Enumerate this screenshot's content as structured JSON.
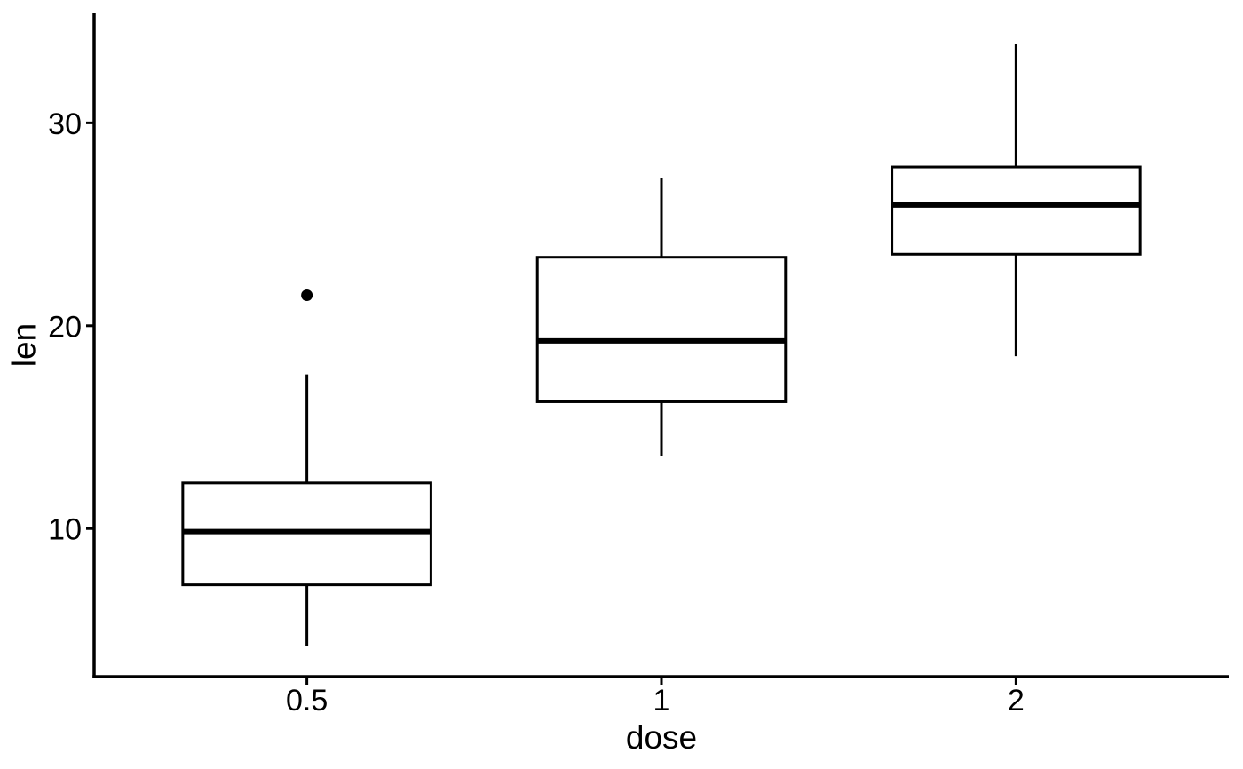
{
  "chart_data": {
    "type": "boxplot",
    "title": "",
    "xlabel": "dose",
    "ylabel": "len",
    "categories": [
      "0.5",
      "1",
      "2"
    ],
    "y_ticks": [
      10,
      20,
      30
    ],
    "ylim": [
      2.7,
      35.4
    ],
    "box_width": 0.7,
    "grid": false,
    "legend": "none",
    "series": [
      {
        "category": "0.5",
        "lower_whisker": 4.2,
        "q1": 7.225,
        "median": 9.85,
        "q3": 12.25,
        "upper_whisker": 17.6,
        "outliers": [
          21.5
        ]
      },
      {
        "category": "1",
        "lower_whisker": 13.6,
        "q1": 16.25,
        "median": 19.25,
        "q3": 23.375,
        "upper_whisker": 27.3,
        "outliers": []
      },
      {
        "category": "2",
        "lower_whisker": 18.5,
        "q1": 23.525,
        "median": 25.95,
        "q3": 27.825,
        "upper_whisker": 33.9,
        "outliers": []
      }
    ],
    "colors": {
      "stroke": "#000000",
      "box_fill": "#ffffff",
      "background": "#ffffff"
    }
  }
}
